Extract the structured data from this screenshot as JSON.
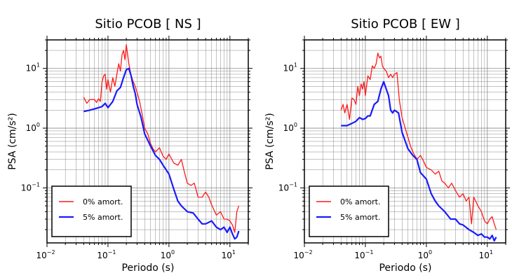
{
  "chart_data": [
    {
      "type": "line",
      "title": "Sitio PCOB [ NS ]",
      "xlabel": "Periodo (s)",
      "ylabel": "PSA (cm/s²)",
      "xscale": "log",
      "yscale": "log",
      "xlim": [
        0.01,
        20
      ],
      "ylim": [
        0.012,
        30
      ],
      "xticks": [
        {
          "base": "10",
          "exp": "−2",
          "value": 0.01
        },
        {
          "base": "10",
          "exp": "−1",
          "value": 0.1
        },
        {
          "base": "10",
          "exp": "0",
          "value": 1
        },
        {
          "base": "10",
          "exp": "1",
          "value": 10
        }
      ],
      "yticks": [
        {
          "base": "10",
          "exp": "−1",
          "value": 0.1
        },
        {
          "base": "10",
          "exp": "0",
          "value": 1
        },
        {
          "base": "10",
          "exp": "1",
          "value": 10
        }
      ],
      "grid": true,
      "legend_position": "bottom-left",
      "series": [
        {
          "name": "0% amort.",
          "color": "#ff1a1a",
          "x": [
            0.04,
            0.045,
            0.05,
            0.055,
            0.06,
            0.065,
            0.07,
            0.075,
            0.08,
            0.085,
            0.09,
            0.095,
            0.1,
            0.11,
            0.12,
            0.13,
            0.14,
            0.15,
            0.16,
            0.17,
            0.18,
            0.19,
            0.2,
            0.22,
            0.24,
            0.26,
            0.28,
            0.3,
            0.33,
            0.36,
            0.4,
            0.45,
            0.5,
            0.55,
            0.6,
            0.7,
            0.8,
            0.9,
            1.0,
            1.2,
            1.4,
            1.6,
            1.8,
            2.0,
            2.3,
            2.6,
            3.0,
            3.5,
            4.0,
            4.5,
            5.0,
            6.0,
            7.0,
            8.0,
            9.0,
            10.0,
            11.0,
            12.0,
            13.0,
            14.0
          ],
          "y": [
            3.3,
            2.6,
            3.0,
            3.0,
            3.0,
            2.7,
            3.1,
            2.8,
            6.0,
            7.5,
            8.0,
            4.5,
            6.5,
            4.0,
            7.0,
            5.0,
            8.0,
            12.0,
            9.0,
            17.0,
            20.0,
            14.0,
            25.0,
            12.0,
            7.5,
            6.0,
            5.0,
            4.0,
            2.8,
            1.8,
            1.0,
            0.8,
            0.55,
            0.45,
            0.4,
            0.47,
            0.34,
            0.3,
            0.37,
            0.26,
            0.24,
            0.3,
            0.18,
            0.12,
            0.11,
            0.12,
            0.07,
            0.07,
            0.085,
            0.07,
            0.052,
            0.035,
            0.04,
            0.03,
            0.03,
            0.028,
            0.024,
            0.018,
            0.04,
            0.05
          ]
        },
        {
          "name": "5% amort.",
          "color": "#1a1aff",
          "x": [
            0.04,
            0.05,
            0.06,
            0.07,
            0.08,
            0.09,
            0.1,
            0.12,
            0.14,
            0.16,
            0.18,
            0.2,
            0.22,
            0.24,
            0.26,
            0.28,
            0.3,
            0.35,
            0.4,
            0.5,
            0.6,
            0.7,
            0.8,
            1.0,
            1.2,
            1.4,
            1.6,
            2.0,
            2.5,
            3.0,
            3.5,
            4.0,
            5.0,
            6.0,
            7.0,
            8.0,
            9.0,
            10.0,
            11.0,
            12.0,
            13.0,
            14.0
          ],
          "y": [
            1.9,
            2.0,
            2.1,
            2.2,
            2.3,
            2.6,
            2.2,
            2.8,
            4.2,
            4.8,
            7.0,
            9.5,
            10.0,
            7.5,
            5.0,
            3.8,
            2.5,
            1.5,
            0.8,
            0.5,
            0.35,
            0.3,
            0.24,
            0.17,
            0.095,
            0.06,
            0.05,
            0.04,
            0.038,
            0.03,
            0.025,
            0.025,
            0.028,
            0.022,
            0.02,
            0.022,
            0.018,
            0.022,
            0.017,
            0.014,
            0.015,
            0.019
          ]
        }
      ]
    },
    {
      "type": "line",
      "title": "Sitio PCOB [ EW ]",
      "xlabel": "Periodo (s)",
      "ylabel": "PSA (cm/s²)",
      "xscale": "log",
      "yscale": "log",
      "xlim": [
        0.01,
        20
      ],
      "ylim": [
        0.012,
        30
      ],
      "xticks": [
        {
          "base": "10",
          "exp": "−2",
          "value": 0.01
        },
        {
          "base": "10",
          "exp": "−1",
          "value": 0.1
        },
        {
          "base": "10",
          "exp": "0",
          "value": 1
        },
        {
          "base": "10",
          "exp": "1",
          "value": 10
        }
      ],
      "yticks": [
        {
          "base": "10",
          "exp": "−1",
          "value": 0.1
        },
        {
          "base": "10",
          "exp": "0",
          "value": 1
        },
        {
          "base": "10",
          "exp": "1",
          "value": 10
        }
      ],
      "grid": true,
      "legend_position": "bottom-left",
      "series": [
        {
          "name": "0% amort.",
          "color": "#ff1a1a",
          "x": [
            0.04,
            0.043,
            0.046,
            0.05,
            0.055,
            0.06,
            0.065,
            0.07,
            0.075,
            0.08,
            0.085,
            0.09,
            0.095,
            0.1,
            0.11,
            0.12,
            0.13,
            0.14,
            0.15,
            0.16,
            0.17,
            0.18,
            0.19,
            0.2,
            0.22,
            0.24,
            0.26,
            0.28,
            0.3,
            0.33,
            0.36,
            0.4,
            0.45,
            0.5,
            0.55,
            0.6,
            0.7,
            0.8,
            0.9,
            1.0,
            1.2,
            1.4,
            1.6,
            1.8,
            2.0,
            2.3,
            2.6,
            3.0,
            3.5,
            4.0,
            4.5,
            5.0,
            5.5,
            6.0,
            7.0,
            8.0,
            9.0,
            10.0,
            11.0,
            12.0,
            13.0,
            14.0
          ],
          "y": [
            2.0,
            2.5,
            1.8,
            2.5,
            1.4,
            3.2,
            3.0,
            2.5,
            5.0,
            3.5,
            5.5,
            4.5,
            6.0,
            3.5,
            7.5,
            6.5,
            11.0,
            10.0,
            12.0,
            18.0,
            15.0,
            16.0,
            11.0,
            10.0,
            9.0,
            7.0,
            8.0,
            7.0,
            8.0,
            8.5,
            3.0,
            1.5,
            1.0,
            0.7,
            0.5,
            0.4,
            0.3,
            0.35,
            0.28,
            0.22,
            0.2,
            0.17,
            0.19,
            0.13,
            0.12,
            0.1,
            0.12,
            0.09,
            0.07,
            0.08,
            0.06,
            0.07,
            0.025,
            0.07,
            0.05,
            0.04,
            0.028,
            0.025,
            0.03,
            0.033,
            0.025,
            0.02
          ]
        },
        {
          "name": "5% amort.",
          "color": "#1a1aff",
          "x": [
            0.04,
            0.05,
            0.06,
            0.07,
            0.08,
            0.09,
            0.1,
            0.11,
            0.12,
            0.14,
            0.16,
            0.18,
            0.2,
            0.22,
            0.24,
            0.26,
            0.28,
            0.3,
            0.35,
            0.4,
            0.5,
            0.6,
            0.7,
            0.8,
            1.0,
            1.2,
            1.4,
            1.6,
            2.0,
            2.5,
            3.0,
            3.5,
            4.0,
            5.0,
            6.0,
            7.0,
            8.0,
            9.0,
            10.0,
            11.0,
            12.0,
            13.0,
            14.0
          ],
          "y": [
            1.1,
            1.1,
            1.2,
            1.3,
            1.5,
            1.4,
            1.45,
            1.6,
            1.6,
            2.5,
            2.8,
            4.5,
            6.0,
            4.5,
            3.5,
            2.0,
            1.8,
            2.0,
            1.8,
            0.85,
            0.45,
            0.35,
            0.3,
            0.18,
            0.14,
            0.08,
            0.06,
            0.05,
            0.04,
            0.03,
            0.03,
            0.025,
            0.024,
            0.02,
            0.018,
            0.016,
            0.017,
            0.015,
            0.015,
            0.014,
            0.016,
            0.013,
            0.015
          ]
        }
      ]
    }
  ]
}
